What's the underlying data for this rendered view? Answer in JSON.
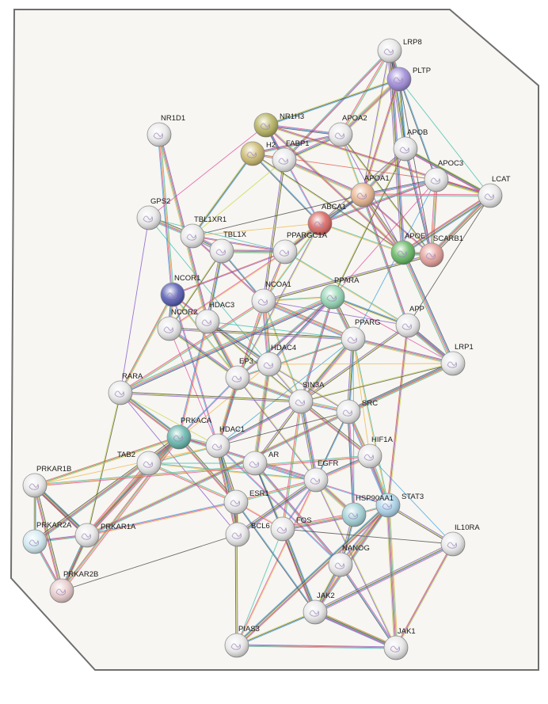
{
  "network": {
    "nodes": [
      {
        "id": "LRP8",
        "color": "#e8e8e8"
      },
      {
        "id": "PLTP",
        "color": "#9a86d6"
      },
      {
        "id": "NR1H3",
        "color": "#b2ae58"
      },
      {
        "id": "NR1D1",
        "color": "#e8e8e8"
      },
      {
        "id": "H2",
        "color": "#c9b669"
      },
      {
        "id": "FABP1",
        "color": "#e8e8e8"
      },
      {
        "id": "APOA2",
        "color": "#e8e8e8"
      },
      {
        "id": "APOB",
        "color": "#e8e8e8"
      },
      {
        "id": "APOC3",
        "color": "#e8e8e8"
      },
      {
        "id": "LCAT",
        "color": "#e8e8e8"
      },
      {
        "id": "APOA1",
        "color": "#e6b28c"
      },
      {
        "id": "GPS2",
        "color": "#e8e8e8"
      },
      {
        "id": "TBL1XR1",
        "color": "#e8e8e8"
      },
      {
        "id": "ABCA1",
        "color": "#d65f5a"
      },
      {
        "id": "TBL1X",
        "color": "#e8e8e8"
      },
      {
        "id": "PPARGC1A",
        "color": "#e8e8e8"
      },
      {
        "id": "APOE",
        "color": "#5fb35c"
      },
      {
        "id": "SCARB1",
        "color": "#e29a94"
      },
      {
        "id": "NCOR1",
        "color": "#4f55b0"
      },
      {
        "id": "NCOA1",
        "color": "#e8e8e8"
      },
      {
        "id": "PPARA",
        "color": "#8fd3b0"
      },
      {
        "id": "HDAC3",
        "color": "#e8e8e8"
      },
      {
        "id": "NCOR2",
        "color": "#e8e8e8"
      },
      {
        "id": "APP",
        "color": "#e8e8e8"
      },
      {
        "id": "PPARG",
        "color": "#e8e8e8"
      },
      {
        "id": "LRP1",
        "color": "#e8e8e8"
      },
      {
        "id": "HDAC4",
        "color": "#e8e8e8"
      },
      {
        "id": "EP3",
        "color": "#e8e8e8"
      },
      {
        "id": "RARA",
        "color": "#e8e8e8"
      },
      {
        "id": "SIN3A",
        "color": "#e8e8e8"
      },
      {
        "id": "SRC",
        "color": "#e8e8e8"
      },
      {
        "id": "PRKACA",
        "color": "#5fb3a8"
      },
      {
        "id": "HDAC1",
        "color": "#e8e8e8"
      },
      {
        "id": "HIF1A",
        "color": "#e8e8e8"
      },
      {
        "id": "TAB2",
        "color": "#e8e8e8"
      },
      {
        "id": "AR",
        "color": "#e8e8e8"
      },
      {
        "id": "EGFR",
        "color": "#e8e8e8"
      },
      {
        "id": "PRKAR1B",
        "color": "#e8e8e8"
      },
      {
        "id": "ESR1",
        "color": "#e8e8e8"
      },
      {
        "id": "STAT3",
        "color": "#a8d2e8"
      },
      {
        "id": "HSP90AA1",
        "color": "#9ed0d6"
      },
      {
        "id": "FOS",
        "color": "#e8e8e8"
      },
      {
        "id": "BCL6",
        "color": "#e8e8e8"
      },
      {
        "id": "PRKAR2A",
        "color": "#cfe8ef"
      },
      {
        "id": "PRKAR1A",
        "color": "#e8e8e8"
      },
      {
        "id": "IL10RA",
        "color": "#e8e8e8"
      },
      {
        "id": "NANOG",
        "color": "#e8e8e8"
      },
      {
        "id": "PRKAR2B",
        "color": "#e6c8c8"
      },
      {
        "id": "JAK2",
        "color": "#e8e8e8"
      },
      {
        "id": "PIAS3",
        "color": "#e8e8e8"
      },
      {
        "id": "JAK1",
        "color": "#e8e8e8"
      }
    ],
    "edge_colors": [
      "#e0409a",
      "#2f9be0",
      "#3d3d3d",
      "#c6d63a",
      "#7a49c9",
      "#e04a3a",
      "#2fb8a8",
      "#f0b03a"
    ]
  }
}
